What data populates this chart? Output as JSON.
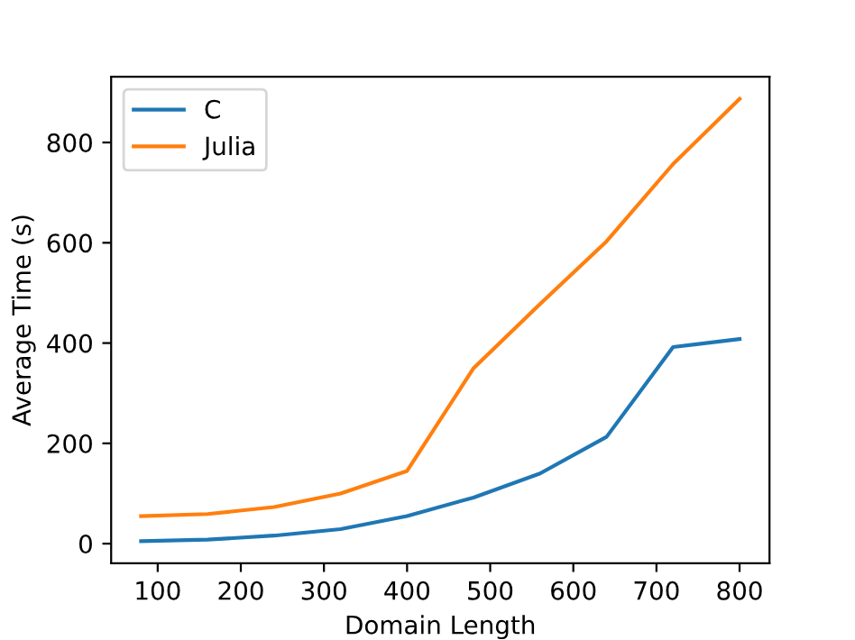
{
  "chart_data": {
    "type": "line",
    "xlabel": "Domain Length",
    "ylabel": "Average Time (s)",
    "x": [
      80,
      160,
      240,
      320,
      400,
      480,
      560,
      640,
      720,
      800
    ],
    "series": [
      {
        "name": "C",
        "color": "#1f77b4",
        "values": [
          5,
          8,
          16,
          29,
          55,
          92,
          140,
          213,
          392,
          408
        ]
      },
      {
        "name": "Julia",
        "color": "#ff7f0e",
        "values": [
          55,
          59,
          73,
          100,
          145,
          350,
          478,
          603,
          757,
          887
        ]
      }
    ],
    "xlim": [
      44,
      836
    ],
    "ylim": [
      -39,
      931
    ],
    "xticks": [
      100,
      200,
      300,
      400,
      500,
      600,
      700,
      800
    ],
    "yticks": [
      0,
      200,
      400,
      600,
      800
    ],
    "grid": false,
    "legend": "top left",
    "marker": "none",
    "line_style": "solid"
  }
}
